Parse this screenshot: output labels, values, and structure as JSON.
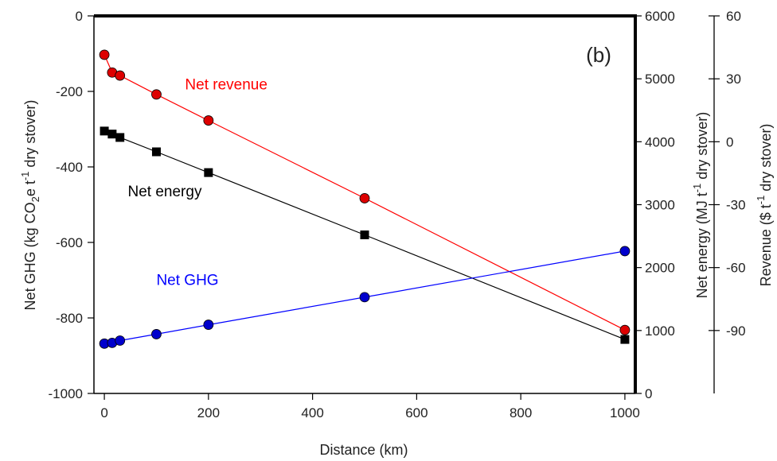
{
  "chart_data": {
    "type": "line",
    "panel_label": "(b)",
    "xlabel": "Distance (km)",
    "xlim": [
      -20,
      1020
    ],
    "xticks": [
      0,
      200,
      400,
      600,
      800,
      1000
    ],
    "y_axes": {
      "left": {
        "label_main": "Net GHG (kg CO",
        "label_sub": "2",
        "label_mid": "e t",
        "label_sup": "-1",
        "label_end": " dry stover)",
        "lim": [
          -1000,
          0
        ],
        "ticks": [
          -1000,
          -800,
          -600,
          -400,
          -200,
          0
        ]
      },
      "right": {
        "label_main": "Net energy (MJ t",
        "label_sup": "-1",
        "label_end": " dry stover)",
        "lim": [
          0,
          6000
        ],
        "ticks": [
          0,
          1000,
          2000,
          3000,
          4000,
          5000,
          6000
        ]
      },
      "far_right": {
        "label_main": "Revenue ($ t",
        "label_sup": "-1",
        "label_end": " dry stover)",
        "lim": [
          -120,
          60
        ],
        "ticks": [
          -90,
          -60,
          -30,
          0,
          30,
          60
        ]
      }
    },
    "series": [
      {
        "name": "Net revenue",
        "axis": "left",
        "color": "#ff0000",
        "marker_fill": "#dd0000",
        "marker": "circle",
        "x": [
          0,
          15,
          30,
          100,
          200,
          500,
          1000
        ],
        "y": [
          -103,
          -150,
          -158,
          -208,
          -277,
          -483,
          -832
        ],
        "label_anchor": [
          155,
          -195
        ]
      },
      {
        "name": "Net energy",
        "axis": "left",
        "color": "#000000",
        "marker_fill": "#000000",
        "marker": "square",
        "x": [
          0,
          15,
          30,
          100,
          200,
          500,
          1000
        ],
        "y": [
          -305,
          -313,
          -322,
          -360,
          -415,
          -580,
          -857
        ],
        "label_anchor": [
          45,
          -478
        ]
      },
      {
        "name": "Net GHG",
        "axis": "left",
        "color": "#0000ff",
        "marker_fill": "#0000cc",
        "marker": "circle",
        "x": [
          0,
          15,
          30,
          100,
          200,
          500,
          1000
        ],
        "y": [
          -868,
          -866,
          -860,
          -843,
          -818,
          -745,
          -623
        ],
        "label_anchor": [
          100,
          -713
        ]
      }
    ]
  }
}
